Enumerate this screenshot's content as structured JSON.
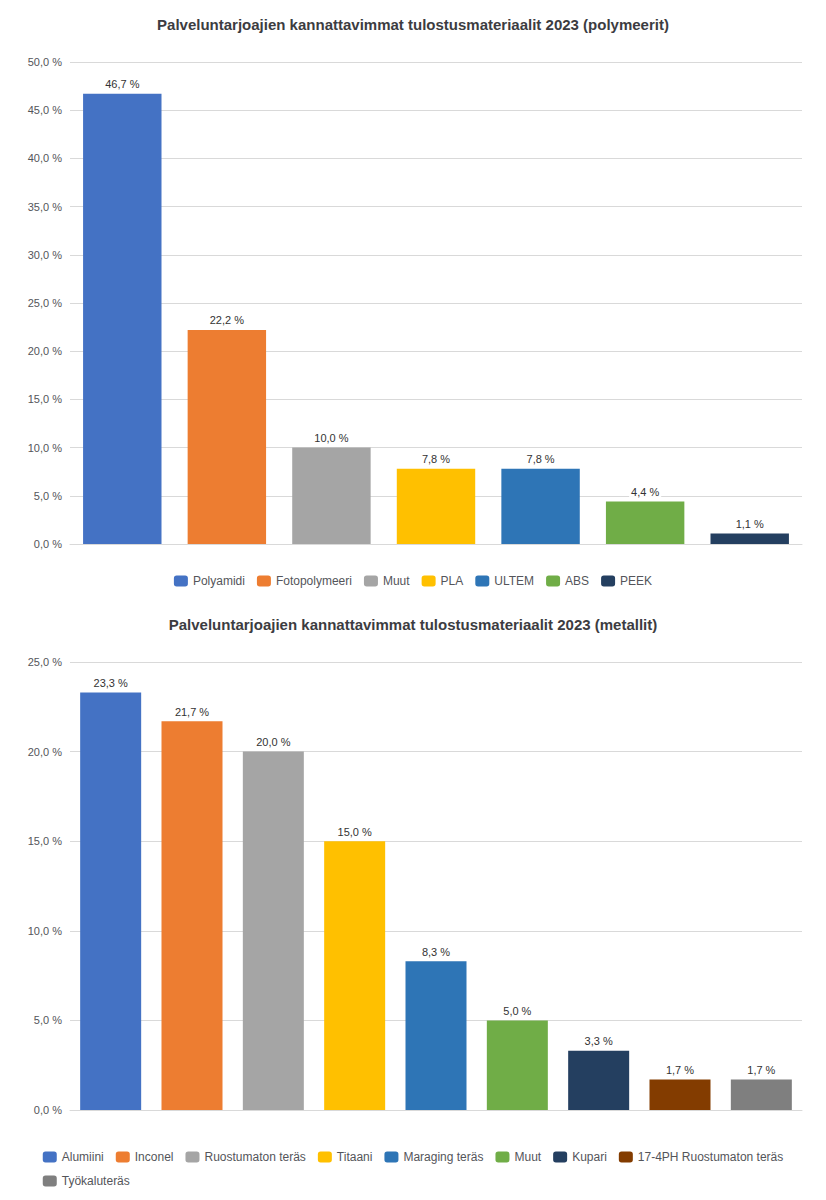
{
  "chart_data": [
    {
      "type": "bar",
      "title": "Palveluntarjoajien kannattavimmat tulostusmateriaalit 2023 (polymeerit)",
      "categories": [
        "Polyamidi",
        "Fotopolymeeri",
        "Muut",
        "PLA",
        "ULTEM",
        "ABS",
        "PEEK"
      ],
      "values": [
        46.7,
        22.2,
        10.0,
        7.8,
        7.8,
        4.4,
        1.1
      ],
      "value_labels": [
        "46,7 %",
        "22,2 %",
        "10,0 %",
        "7,8 %",
        "7,8 %",
        "4,4 %",
        "1,1 %"
      ],
      "colors": [
        "#4472C4",
        "#ED7D31",
        "#A5A5A5",
        "#FFC000",
        "#2E75B6",
        "#70AD47",
        "#243F60"
      ],
      "ylim": [
        0,
        50
      ],
      "yticks": [
        {
          "value": 0,
          "label": "0,0 %"
        },
        {
          "value": 5,
          "label": "5,0 %"
        },
        {
          "value": 10,
          "label": "10,0 %"
        },
        {
          "value": 15,
          "label": "15,0 %"
        },
        {
          "value": 20,
          "label": "20,0 %"
        },
        {
          "value": 25,
          "label": "25,0 %"
        },
        {
          "value": 30,
          "label": "30,0 %"
        },
        {
          "value": 35,
          "label": "35,0 %"
        },
        {
          "value": 40,
          "label": "40,0 %"
        },
        {
          "value": 45,
          "label": "45,0 %"
        },
        {
          "value": 50,
          "label": "50,0 %"
        }
      ],
      "grid": true,
      "legend": "bottom",
      "data_labels": true,
      "tick_labels": "y"
    },
    {
      "type": "bar",
      "title": "Palveluntarjoajien kannattavimmat tulostusmateriaalit 2023 (metallit)",
      "categories": [
        "Alumiini",
        "Inconel",
        "Ruostumaton teräs",
        "Titaani",
        "Maraging teräs",
        "Muut",
        "Kupari",
        "17-4PH Ruostumaton teräs",
        "Työkaluteräs"
      ],
      "values": [
        23.3,
        21.7,
        20.0,
        15.0,
        8.3,
        5.0,
        3.3,
        1.7,
        1.7
      ],
      "value_labels": [
        "23,3 %",
        "21,7 %",
        "20,0 %",
        "15,0 %",
        "8,3 %",
        "5,0 %",
        "3,3 %",
        "1,7 %",
        "1,7 %"
      ],
      "colors": [
        "#4472C4",
        "#ED7D31",
        "#A5A5A5",
        "#FFC000",
        "#2E75B6",
        "#70AD47",
        "#243F60",
        "#833C00",
        "#7F7F7F"
      ],
      "ylim": [
        0,
        25
      ],
      "yticks": [
        {
          "value": 0,
          "label": "0,0 %"
        },
        {
          "value": 5,
          "label": "5,0 %"
        },
        {
          "value": 10,
          "label": "10,0 %"
        },
        {
          "value": 15,
          "label": "15,0 %"
        },
        {
          "value": 20,
          "label": "20,0 %"
        },
        {
          "value": 25,
          "label": "25,0 %"
        }
      ],
      "grid": true,
      "legend": "bottom",
      "data_labels": true,
      "tick_labels": "y"
    }
  ]
}
